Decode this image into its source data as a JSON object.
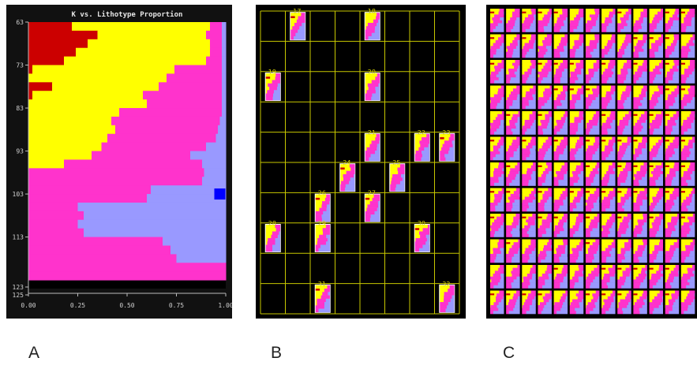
{
  "colors": {
    "sand_yellow": "#ffff00",
    "shale_magenta": "#ff33cc",
    "silt_lavender": "#9999ff",
    "carbonate_red": "#cc0000",
    "marker_blue": "#0000ff",
    "grid_yellow": "#c8c800"
  },
  "figure_labels": {
    "a": "A",
    "b": "B",
    "c": "C"
  },
  "chart_data": [
    {
      "panel": "A",
      "type": "area",
      "title": "K vs. Lithotype Proportion",
      "xlabel": "",
      "ylabel": "",
      "x_ticks": [
        "0.00",
        "0.25",
        "0.50",
        "0.75",
        "1.00"
      ],
      "y_ticks": [
        "63",
        "73",
        "83",
        "93",
        "103",
        "113",
        "123",
        "125"
      ],
      "xlim": [
        0,
        1
      ],
      "ylim": [
        63,
        125
      ],
      "legend": "none",
      "grid": false,
      "k_layers": [
        63,
        65,
        67,
        69,
        71,
        73,
        75,
        77,
        79,
        81,
        83,
        85,
        87,
        89,
        91,
        93,
        95,
        97,
        99,
        101,
        103,
        105,
        107,
        109,
        111,
        113,
        115,
        117,
        119,
        121
      ],
      "series": [
        {
          "name": "",
          "color": "#cc0000",
          "values": [
            0.22,
            0.35,
            0.3,
            0.24,
            0.18,
            0.02,
            0,
            0.12,
            0.02,
            0,
            0,
            0,
            0,
            0,
            0,
            0,
            0,
            0,
            0,
            0,
            0,
            0,
            0,
            0,
            0,
            0,
            0,
            0,
            0,
            0
          ]
        },
        {
          "name": "",
          "color": "#ffff00",
          "values": [
            0.7,
            0.55,
            0.62,
            0.68,
            0.72,
            0.72,
            0.7,
            0.54,
            0.56,
            0.6,
            0.46,
            0.42,
            0.44,
            0.4,
            0.37,
            0.32,
            0.18,
            0,
            0,
            0,
            0,
            0,
            0,
            0,
            0,
            0,
            0,
            0,
            0,
            0
          ]
        },
        {
          "name": "",
          "color": "#ff33cc",
          "values": [
            0.06,
            0.08,
            0.06,
            0.06,
            0.08,
            0.24,
            0.28,
            0.32,
            0.4,
            0.38,
            0.52,
            0.55,
            0.52,
            0.55,
            0.53,
            0.5,
            0.7,
            0.89,
            0.88,
            0.62,
            0.6,
            0.25,
            0.28,
            0.25,
            0.28,
            0.68,
            0.72,
            0.75,
            1.0,
            1.0
          ]
        },
        {
          "name": "",
          "color": "#9999ff",
          "values": [
            0.02,
            0.02,
            0.02,
            0.02,
            0.02,
            0.02,
            0.02,
            0.02,
            0.02,
            0.02,
            0.02,
            0.03,
            0.04,
            0.05,
            0.1,
            0.18,
            0.12,
            0.11,
            0.12,
            0.38,
            0.4,
            0.75,
            0.72,
            0.75,
            0.72,
            0.32,
            0.28,
            0.25,
            0,
            0
          ]
        }
      ],
      "marker": {
        "k": 103,
        "proportion": 0.97,
        "color": "#0000ff"
      }
    },
    {
      "panel": "B",
      "type": "table",
      "grid_cols": 8,
      "grid_rows": 10,
      "wells": [
        {
          "id": "17",
          "col": 1,
          "row": 0
        },
        {
          "id": "18",
          "col": 4,
          "row": 0
        },
        {
          "id": "19",
          "col": 0,
          "row": 2
        },
        {
          "id": "20",
          "col": 4,
          "row": 2
        },
        {
          "id": "21",
          "col": 4,
          "row": 4
        },
        {
          "id": "22",
          "col": 6,
          "row": 4
        },
        {
          "id": "23",
          "col": 7,
          "row": 4
        },
        {
          "id": "24",
          "col": 3,
          "row": 5
        },
        {
          "id": "25",
          "col": 5,
          "row": 5
        },
        {
          "id": "26",
          "col": 2,
          "row": 6
        },
        {
          "id": "27",
          "col": 4,
          "row": 6
        },
        {
          "id": "28",
          "col": 0,
          "row": 7
        },
        {
          "id": "29",
          "col": 2,
          "row": 7
        },
        {
          "id": "30",
          "col": 6,
          "row": 7
        },
        {
          "id": "31",
          "col": 2,
          "row": 9
        },
        {
          "id": "32",
          "col": 7,
          "row": 9
        }
      ]
    },
    {
      "panel": "C",
      "type": "table",
      "grid_cols": 13,
      "grid_rows": 12
    }
  ]
}
